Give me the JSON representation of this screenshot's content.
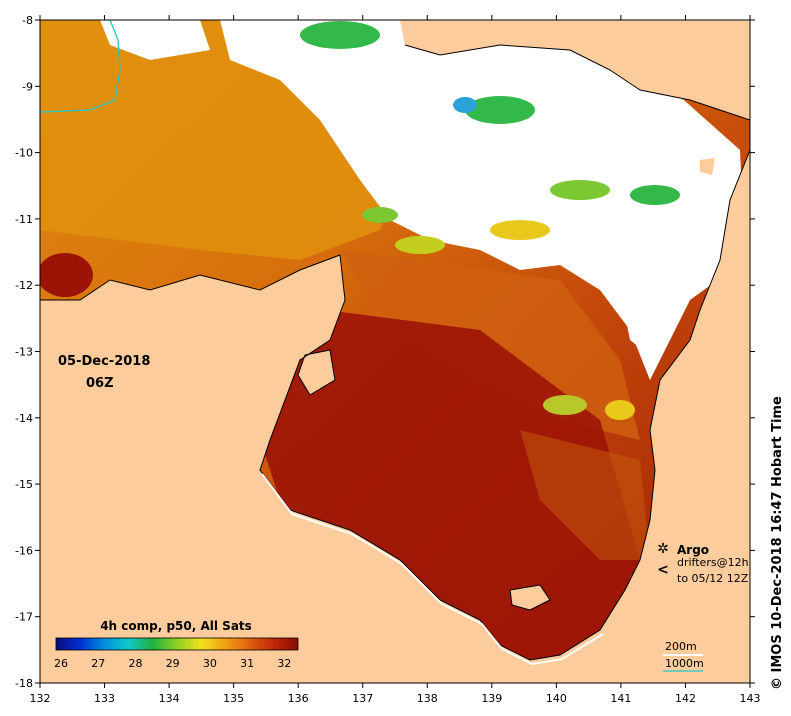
{
  "map": {
    "date_label": "05-Dec-2018",
    "time_label": "06Z",
    "credit": "© IMOS 10-Dec-2018 16:47 Hobart Time",
    "x_ticks": [
      "132",
      "133",
      "134",
      "135",
      "136",
      "137",
      "138",
      "139",
      "140",
      "141",
      "142",
      "143"
    ],
    "y_ticks": [
      "-8",
      "-9",
      "-10",
      "-11",
      "-12",
      "-13",
      "-14",
      "-15",
      "-16",
      "-17",
      "-18"
    ],
    "lon_range": [
      132,
      143
    ],
    "lat_range": [
      -18,
      -8
    ],
    "colors": {
      "land": "#fccc9c",
      "cloud": "#ffffff",
      "hot": "#9c1406",
      "warm": "#d4620a",
      "mid": "#e28c10",
      "cool": "#c4ce1e",
      "green": "#33b84a",
      "blue": "#2aa2d8"
    }
  },
  "colorbar": {
    "title": "4h comp, p50, All Sats",
    "ticks": [
      "26",
      "27",
      "28",
      "29",
      "30",
      "31",
      "32"
    ],
    "range": [
      26,
      32.5
    ],
    "colors": [
      "#0a0a80",
      "#0030d0",
      "#0090e0",
      "#10c8c8",
      "#20b040",
      "#90d020",
      "#f0e020",
      "#f0a010",
      "#e06010",
      "#c02808",
      "#8a0e06"
    ]
  },
  "legend": {
    "argo_label": "Argo",
    "drifters_label": "drifters@12h",
    "drifters_sub": "to 05/12 12Z",
    "contour_200": "200m",
    "contour_1000": "1000m",
    "argo_color": "#e040e0",
    "contour_200_color": "#ffffff",
    "contour_1000_color": "#20c8c8"
  }
}
